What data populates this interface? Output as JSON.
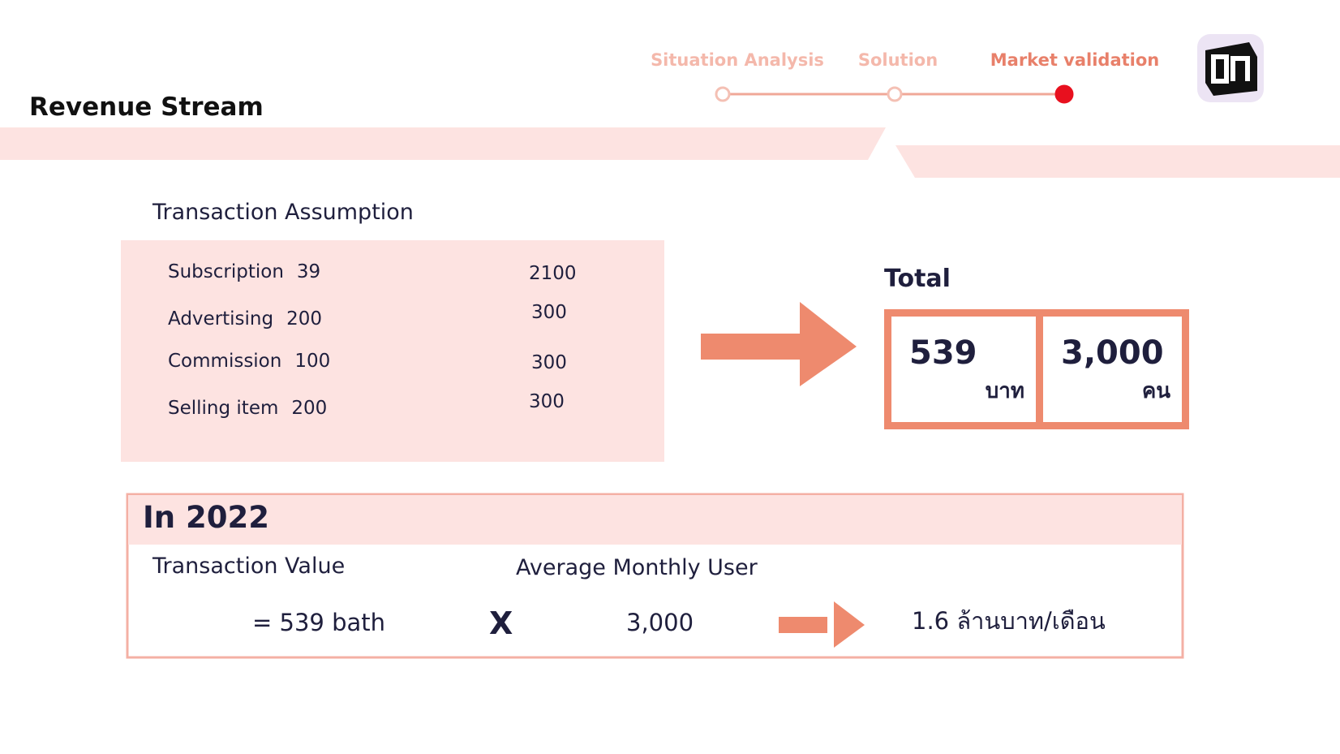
{
  "header": {
    "title": "Revenue Stream",
    "steps": [
      "Situation Analysis",
      "Solution",
      "Market validation"
    ],
    "active_step": 2
  },
  "assumption": {
    "title": "Transaction Assumption",
    "rows": [
      [
        "Subscription",
        "39",
        "2100"
      ],
      [
        "Advertising",
        "200",
        "300"
      ],
      [
        "Commission",
        "100",
        "300"
      ],
      [
        "Selling item",
        "200",
        "300"
      ]
    ]
  },
  "total": {
    "title": "Total",
    "boxes": [
      {
        "value": "539",
        "unit": "บาท"
      },
      {
        "value": "3,000",
        "unit": "คน"
      }
    ]
  },
  "summary": {
    "title": "In 2022",
    "left_label": "Transaction Value",
    "left_value": "= 539 bath",
    "operator": "X",
    "right_label": "Average Monthly User",
    "right_value": "3,000",
    "result": "1.6 ล้านบาท/เดือน"
  }
}
